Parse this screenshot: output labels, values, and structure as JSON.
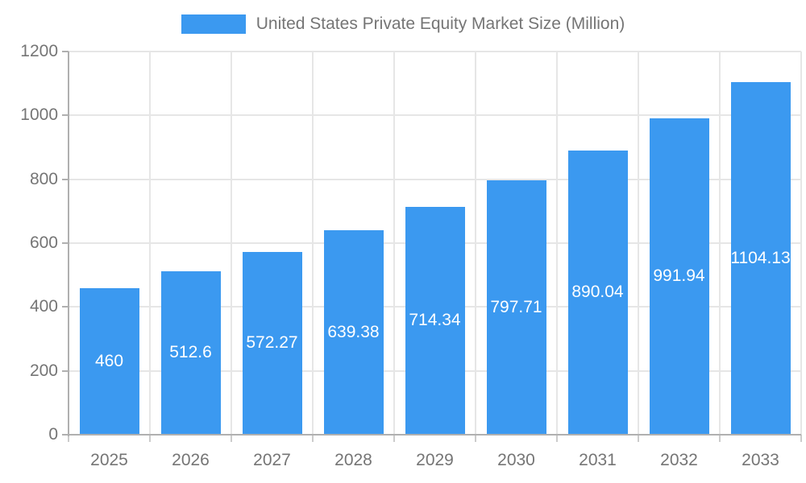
{
  "legend": {
    "label": "United States Private Equity Market Size (Million)"
  },
  "chart_data": {
    "type": "bar",
    "title": "United States Private Equity Market Size (Million)",
    "categories": [
      "2025",
      "2026",
      "2027",
      "2028",
      "2029",
      "2030",
      "2031",
      "2032",
      "2033"
    ],
    "values": [
      460,
      512.6,
      572.27,
      639.38,
      714.34,
      797.71,
      890.04,
      991.94,
      1104.13
    ],
    "bar_labels": [
      "460",
      "512.6",
      "572.27",
      "639.38",
      "714.34",
      "797.71",
      "890.04",
      "991.94",
      "1104.13"
    ],
    "xlabel": "",
    "ylabel": "",
    "ylim": [
      0,
      1200
    ],
    "y_ticks": [
      0,
      200,
      400,
      600,
      800,
      1000,
      1200
    ],
    "grid": true,
    "legend_position": "top-center",
    "value_label_position": "center-of-bar",
    "colors": {
      "bar": "#3b99f0",
      "bar_label_text": "#ffffff",
      "axis_text": "#757575",
      "grid_line": "#e6e6e6",
      "axis_line": "#b0b0b0",
      "tick_line": "#cccccc",
      "background": "#ffffff"
    }
  }
}
